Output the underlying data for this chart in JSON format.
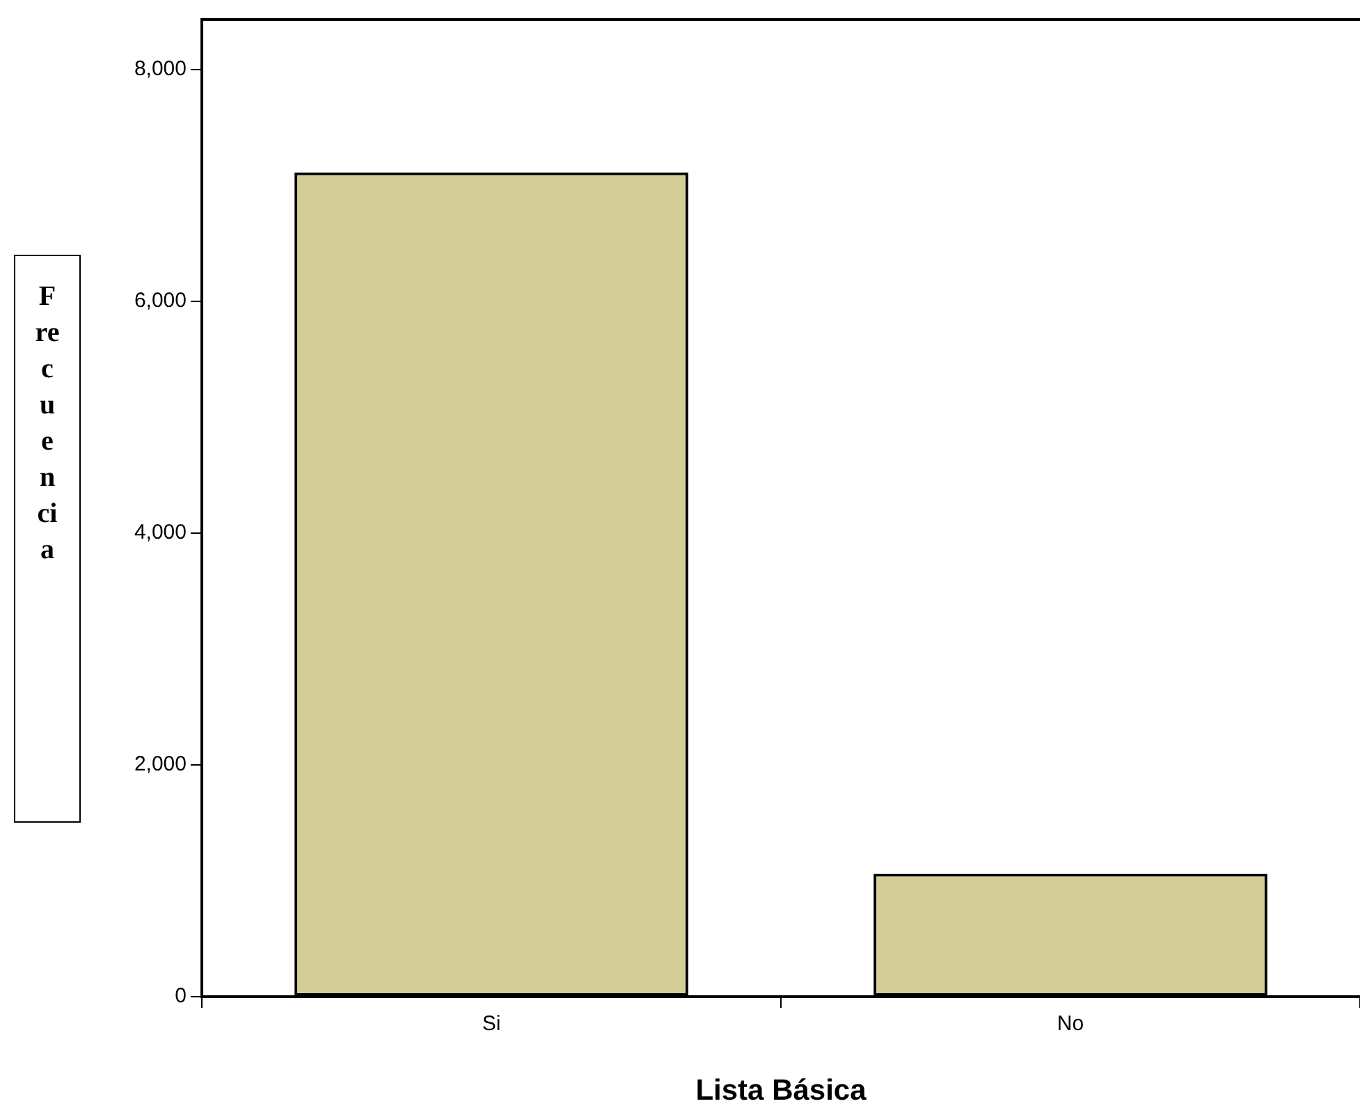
{
  "chart_data": {
    "type": "bar",
    "xlabel": "Lista Básica",
    "ylabel": "Frecuencia",
    "categories": [
      "Si",
      "No"
    ],
    "values": [
      7110,
      1060
    ],
    "color": "#d3cd98",
    "ylim": [
      0,
      8430
    ],
    "yticks": [
      {
        "value": 0,
        "label": "0"
      },
      {
        "value": 2000,
        "label": "2,000"
      },
      {
        "value": 4000,
        "label": "4,000"
      },
      {
        "value": 6000,
        "label": "6,000"
      },
      {
        "value": 8000,
        "label": "8,000"
      }
    ],
    "grid": false,
    "legend": false
  }
}
